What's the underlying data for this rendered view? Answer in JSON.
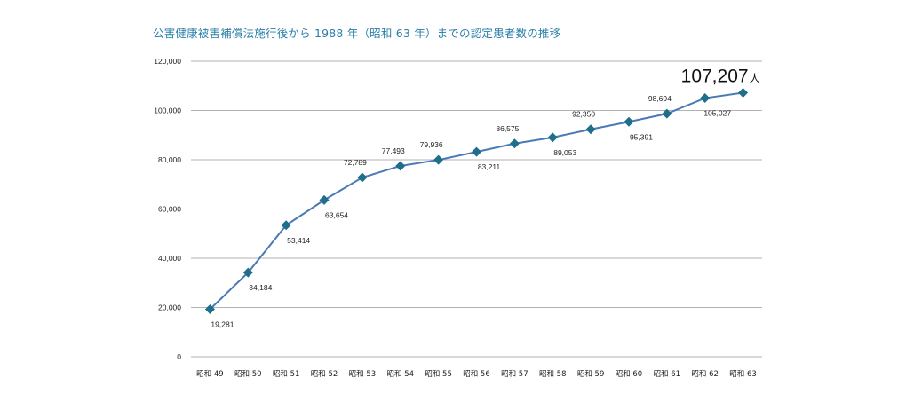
{
  "chart_data": {
    "type": "line",
    "title": "公害健康被害補償法施行後から 1988 年（昭和 63 年）までの認定患者数の推移",
    "categories": [
      "昭和 49",
      "昭和 50",
      "昭和 51",
      "昭和 52",
      "昭和 53",
      "昭和 54",
      "昭和 55",
      "昭和 56",
      "昭和 57",
      "昭和 58",
      "昭和 59",
      "昭和 60",
      "昭和 61",
      "昭和 62",
      "昭和 63"
    ],
    "series": [
      {
        "name": "認定患者数",
        "values": [
          19281,
          34184,
          53414,
          63654,
          72789,
          77493,
          79936,
          83211,
          86575,
          89053,
          92350,
          95391,
          98694,
          105027,
          107207
        ],
        "labels": [
          "19,281",
          "34,184",
          "53,414",
          "63,654",
          "72,789",
          "77,493",
          "79,936",
          "83,211",
          "86,575",
          "89,053",
          "92,350",
          "95,391",
          "98,694",
          "105,027",
          ""
        ],
        "label_pos": [
          "below",
          "below",
          "below",
          "below",
          "above",
          "above",
          "above",
          "below",
          "above",
          "below",
          "above",
          "below",
          "above",
          "below",
          "above"
        ]
      }
    ],
    "final_value_label": "107,207",
    "final_unit": "人",
    "yticks": [
      0,
      20000,
      40000,
      60000,
      80000,
      100000,
      120000
    ],
    "ytick_labels": [
      "0",
      "20,000",
      "40,000",
      "60,000",
      "80,000",
      "100,000",
      "120,000"
    ],
    "ylim": [
      0,
      120000
    ],
    "xlabel": "",
    "ylabel": "",
    "grid": true,
    "colors": {
      "line": "#4a7ab5",
      "marker": "#1e6e8c",
      "grid": "#9a9a9a",
      "title": "#2a7fa8"
    }
  }
}
